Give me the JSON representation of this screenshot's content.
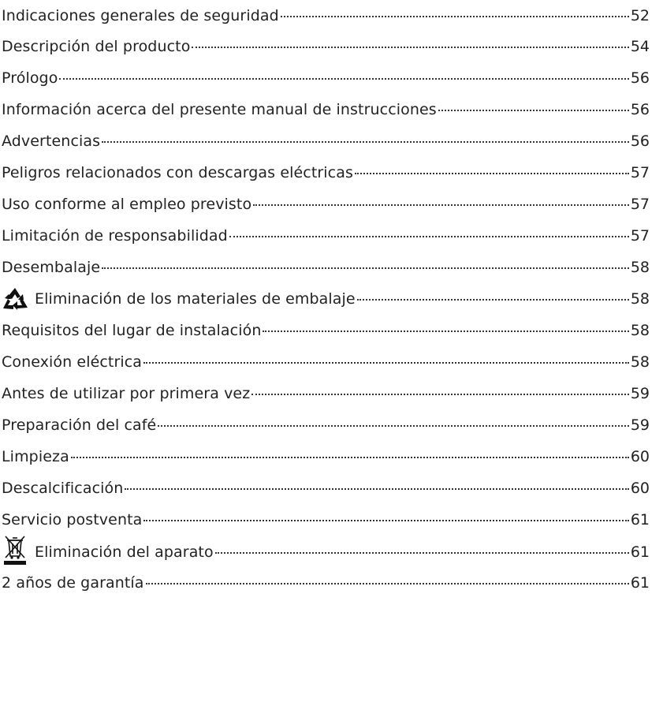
{
  "toc": [
    {
      "title": "Indicaciones generales de seguridad",
      "page": "52",
      "icon": null
    },
    {
      "title": "Descripción del producto",
      "page": "54",
      "icon": null
    },
    {
      "title": "Prólogo",
      "page": "56",
      "icon": null
    },
    {
      "title": "Información acerca del presente manual de instrucciones",
      "page": "56",
      "icon": null
    },
    {
      "title": "Advertencias",
      "page": "56",
      "icon": null
    },
    {
      "title": "Peligros relacionados con descargas eléctricas",
      "page": "57",
      "icon": null
    },
    {
      "title": "Uso conforme al empleo previsto",
      "page": "57",
      "icon": null
    },
    {
      "title": "Limitación de responsabilidad",
      "page": "57",
      "icon": null
    },
    {
      "title": "Desembalaje",
      "page": "58",
      "icon": null
    },
    {
      "title": "Eliminación de los materiales de embalaje",
      "page": "58",
      "icon": "recycle-icon"
    },
    {
      "title": "Requisitos del lugar de instalación",
      "page": "58",
      "icon": null
    },
    {
      "title": "Conexión eléctrica",
      "page": "58",
      "icon": null
    },
    {
      "title": "Antes de utilizar por primera vez",
      "page": "59",
      "icon": null
    },
    {
      "title": "Preparación del café",
      "page": "59",
      "icon": null
    },
    {
      "title": "Limpieza",
      "page": "60",
      "icon": null
    },
    {
      "title": "Descalcificación",
      "page": "60",
      "icon": null
    },
    {
      "title": "Servicio postventa",
      "page": "61",
      "icon": null
    },
    {
      "title": "Eliminación del aparato",
      "page": "61",
      "icon": "crossed-bin-icon"
    },
    {
      "title": "2 años de garantía",
      "page": "61",
      "icon": null
    }
  ]
}
